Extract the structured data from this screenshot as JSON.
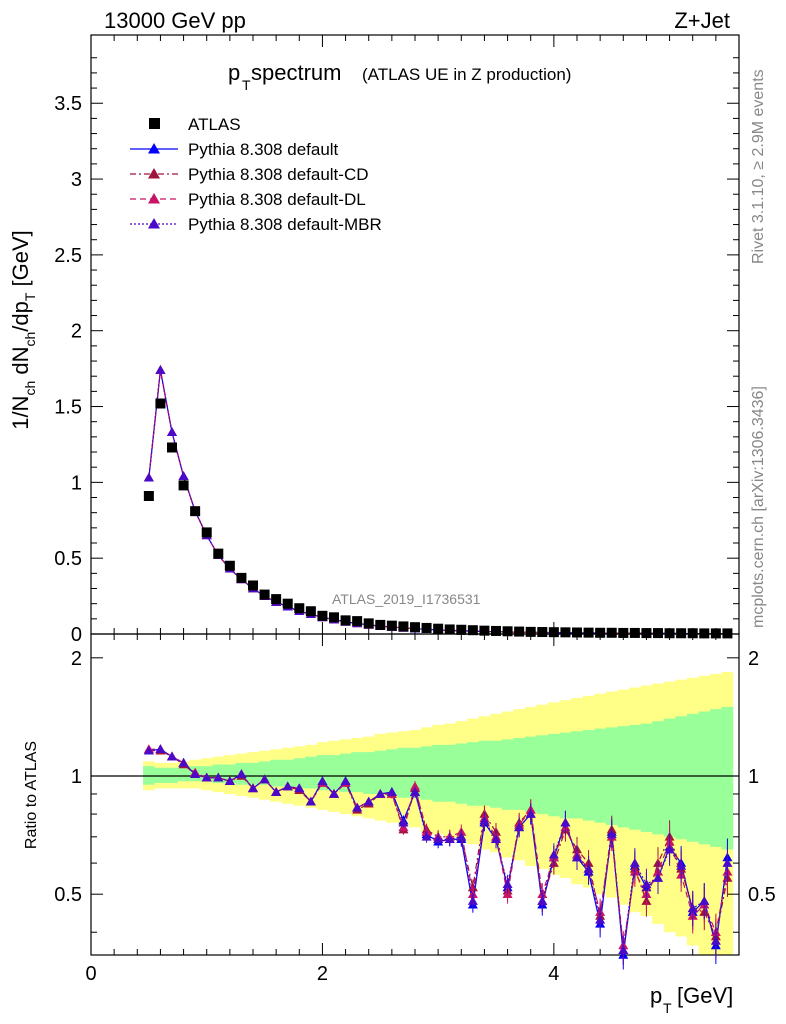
{
  "header": {
    "left": "13000 GeV pp",
    "right": "Z+Jet"
  },
  "title": {
    "main": "p",
    "main_sub": "T",
    "main_tail": " spectrum",
    "paren": "(ATLAS UE in Z production)"
  },
  "side_labels": {
    "rivet": "Rivet 3.1.10, ≥ 2.9M events",
    "mcplots": "mcplots.cern.ch [arXiv:1306.3436]"
  },
  "analysis_tag": "ATLAS_2019_I1736531",
  "axes": {
    "top_ylabel": "1/N_ch dN_ch/dp_T [GeV]",
    "bottom_ylabel": "Ratio to ATLAS",
    "xlabel": "p_T [GeV]",
    "x_ticks": [
      "0",
      "2",
      "4"
    ],
    "top_y_ticks": [
      "0",
      "0.5",
      "1",
      "1.5",
      "2",
      "2.5",
      "3",
      "3.5"
    ],
    "bottom_y_ticks": [
      "0.5",
      "1",
      "2"
    ]
  },
  "legend": [
    {
      "label": "ATLAS",
      "color": "#000000",
      "style": "square"
    },
    {
      "label": "Pythia 8.308 default",
      "color": "#0000ff",
      "style": "solid"
    },
    {
      "label": "Pythia 8.308 default-CD",
      "color": "#a0143c",
      "style": "dashdot"
    },
    {
      "label": "Pythia 8.308 default-DL",
      "color": "#c81464",
      "style": "dash"
    },
    {
      "label": "Pythia 8.308 default-MBR",
      "color": "#4b0ac8",
      "style": "dotted"
    }
  ],
  "chart_data": {
    "type": "scatter",
    "x": [
      0.5,
      0.6,
      0.7,
      0.8,
      0.9,
      1.0,
      1.1,
      1.2,
      1.3,
      1.4,
      1.5,
      1.6,
      1.7,
      1.8,
      1.9,
      2.0,
      2.1,
      2.2,
      2.3,
      2.4,
      2.5,
      2.6,
      2.7,
      2.8,
      2.9,
      3.0,
      3.1,
      3.2,
      3.3,
      3.4,
      3.5,
      3.6,
      3.7,
      3.8,
      3.9,
      4.0,
      4.1,
      4.2,
      4.3,
      4.4,
      4.5,
      4.6,
      4.7,
      4.8,
      4.9,
      5.0,
      5.1,
      5.2,
      5.3,
      5.4,
      5.5
    ],
    "xlim": [
      0,
      5.6
    ],
    "top": {
      "ylim": [
        0,
        3.95
      ],
      "series": [
        {
          "name": "ATLAS",
          "values": [
            0.91,
            1.52,
            1.23,
            0.98,
            0.81,
            0.67,
            0.53,
            0.45,
            0.37,
            0.32,
            0.26,
            0.23,
            0.2,
            0.17,
            0.15,
            0.12,
            0.11,
            0.09,
            0.085,
            0.07,
            0.06,
            0.055,
            0.05,
            0.045,
            0.04,
            0.035,
            0.03,
            0.028,
            0.025,
            0.022,
            0.02,
            0.018,
            0.016,
            0.014,
            0.013,
            0.012,
            0.011,
            0.01,
            0.009,
            0.008,
            0.008,
            0.007,
            0.007,
            0.006,
            0.006,
            0.005,
            0.005,
            0.005,
            0.004,
            0.004,
            0.004
          ]
        },
        {
          "name": "Pythia 8.308 default",
          "values": [
            1.03,
            1.74,
            1.33,
            1.04,
            0.81,
            0.65,
            0.52,
            0.43,
            0.36,
            0.3,
            0.25,
            0.21,
            0.18,
            0.15,
            0.13,
            0.11,
            0.095,
            0.08,
            0.07,
            0.06,
            0.052,
            0.046,
            0.04,
            0.035,
            0.031,
            0.027,
            0.024,
            0.021,
            0.019,
            0.017,
            0.015,
            0.013,
            0.012,
            0.011,
            0.01,
            0.009,
            0.008,
            0.007,
            0.007,
            0.006,
            0.006,
            0.005,
            0.005,
            0.004,
            0.004,
            0.004,
            0.003,
            0.003,
            0.003,
            0.003,
            0.002
          ]
        }
      ]
    },
    "ratio": {
      "ylim": [
        0.35,
        2.3
      ],
      "log": true,
      "reference": 1,
      "series": [
        {
          "name": "Pythia 8.308 default",
          "values": [
            1.16,
            1.17,
            1.12,
            1.08,
            1.01,
            0.99,
            0.99,
            0.97,
            1.01,
            0.93,
            0.98,
            0.91,
            0.94,
            0.93,
            0.86,
            0.97,
            0.9,
            0.97,
            0.83,
            0.86,
            0.9,
            0.91,
            0.77,
            0.91,
            0.71,
            0.68,
            0.69,
            0.69,
            0.47,
            0.76,
            0.69,
            0.52,
            0.74,
            0.8,
            0.47,
            0.62,
            0.76,
            0.62,
            0.57,
            0.42,
            0.72,
            0.35,
            0.59,
            0.52,
            0.55,
            0.66,
            0.6,
            0.45,
            0.48,
            0.37,
            0.62
          ]
        },
        {
          "name": "Pythia 8.308 default-CD",
          "values": [
            1.16,
            1.16,
            1.12,
            1.07,
            1.01,
            0.99,
            0.99,
            0.97,
            1.0,
            0.93,
            0.98,
            0.91,
            0.94,
            0.92,
            0.86,
            0.96,
            0.9,
            0.96,
            0.82,
            0.85,
            0.9,
            0.9,
            0.73,
            0.93,
            0.73,
            0.7,
            0.7,
            0.7,
            0.52,
            0.8,
            0.72,
            0.51,
            0.76,
            0.82,
            0.48,
            0.6,
            0.73,
            0.65,
            0.6,
            0.44,
            0.73,
            0.36,
            0.58,
            0.48,
            0.6,
            0.7,
            0.58,
            0.46,
            0.45,
            0.39,
            0.55
          ]
        },
        {
          "name": "Pythia 8.308 default-DL",
          "values": [
            1.17,
            1.17,
            1.12,
            1.08,
            1.02,
            0.99,
            0.99,
            0.97,
            1.01,
            0.93,
            0.98,
            0.91,
            0.94,
            0.93,
            0.86,
            0.96,
            0.9,
            0.96,
            0.83,
            0.86,
            0.9,
            0.9,
            0.74,
            0.94,
            0.72,
            0.7,
            0.7,
            0.72,
            0.5,
            0.78,
            0.7,
            0.5,
            0.75,
            0.82,
            0.5,
            0.62,
            0.74,
            0.63,
            0.58,
            0.45,
            0.7,
            0.37,
            0.57,
            0.5,
            0.57,
            0.68,
            0.56,
            0.44,
            0.47,
            0.4,
            0.57
          ]
        },
        {
          "name": "Pythia 8.308 default-MBR",
          "values": [
            1.16,
            1.17,
            1.12,
            1.08,
            1.01,
            0.99,
            0.99,
            0.97,
            1.01,
            0.93,
            0.98,
            0.91,
            0.94,
            0.93,
            0.86,
            0.97,
            0.9,
            0.97,
            0.83,
            0.86,
            0.9,
            0.91,
            0.76,
            0.91,
            0.7,
            0.69,
            0.69,
            0.7,
            0.48,
            0.77,
            0.69,
            0.53,
            0.74,
            0.8,
            0.48,
            0.63,
            0.76,
            0.62,
            0.58,
            0.43,
            0.71,
            0.36,
            0.6,
            0.53,
            0.55,
            0.65,
            0.59,
            0.46,
            0.48,
            0.38,
            0.6
          ]
        }
      ],
      "band_green": [
        [
          0.95,
          1.06
        ],
        [
          0.96,
          1.05
        ],
        [
          0.96,
          1.05
        ],
        [
          0.97,
          1.06
        ],
        [
          0.97,
          1.06
        ],
        [
          0.97,
          1.06
        ],
        [
          0.96,
          1.07
        ],
        [
          0.96,
          1.07
        ],
        [
          0.95,
          1.08
        ],
        [
          0.95,
          1.08
        ],
        [
          0.95,
          1.09
        ],
        [
          0.94,
          1.1
        ],
        [
          0.94,
          1.1
        ],
        [
          0.93,
          1.11
        ],
        [
          0.93,
          1.12
        ],
        [
          0.92,
          1.13
        ],
        [
          0.92,
          1.13
        ],
        [
          0.91,
          1.14
        ],
        [
          0.91,
          1.15
        ],
        [
          0.9,
          1.15
        ],
        [
          0.9,
          1.16
        ],
        [
          0.89,
          1.17
        ],
        [
          0.88,
          1.18
        ],
        [
          0.88,
          1.18
        ],
        [
          0.87,
          1.19
        ],
        [
          0.86,
          1.2
        ],
        [
          0.86,
          1.2
        ],
        [
          0.85,
          1.21
        ],
        [
          0.84,
          1.22
        ],
        [
          0.84,
          1.23
        ],
        [
          0.83,
          1.23
        ],
        [
          0.82,
          1.24
        ],
        [
          0.82,
          1.25
        ],
        [
          0.81,
          1.26
        ],
        [
          0.8,
          1.27
        ],
        [
          0.79,
          1.28
        ],
        [
          0.78,
          1.29
        ],
        [
          0.78,
          1.3
        ],
        [
          0.77,
          1.31
        ],
        [
          0.76,
          1.32
        ],
        [
          0.75,
          1.33
        ],
        [
          0.74,
          1.34
        ],
        [
          0.73,
          1.35
        ],
        [
          0.72,
          1.36
        ],
        [
          0.71,
          1.38
        ],
        [
          0.7,
          1.4
        ],
        [
          0.69,
          1.42
        ],
        [
          0.68,
          1.44
        ],
        [
          0.67,
          1.46
        ],
        [
          0.66,
          1.48
        ],
        [
          0.65,
          1.5
        ]
      ],
      "band_yellow": [
        [
          0.92,
          1.09
        ],
        [
          0.93,
          1.08
        ],
        [
          0.93,
          1.08
        ],
        [
          0.93,
          1.09
        ],
        [
          0.93,
          1.1
        ],
        [
          0.92,
          1.11
        ],
        [
          0.91,
          1.12
        ],
        [
          0.9,
          1.13
        ],
        [
          0.89,
          1.14
        ],
        [
          0.88,
          1.15
        ],
        [
          0.87,
          1.16
        ],
        [
          0.86,
          1.17
        ],
        [
          0.85,
          1.18
        ],
        [
          0.84,
          1.19
        ],
        [
          0.83,
          1.2
        ],
        [
          0.82,
          1.22
        ],
        [
          0.81,
          1.23
        ],
        [
          0.8,
          1.24
        ],
        [
          0.79,
          1.25
        ],
        [
          0.78,
          1.26
        ],
        [
          0.77,
          1.28
        ],
        [
          0.76,
          1.29
        ],
        [
          0.75,
          1.3
        ],
        [
          0.74,
          1.31
        ],
        [
          0.72,
          1.33
        ],
        [
          0.71,
          1.35
        ],
        [
          0.7,
          1.36
        ],
        [
          0.68,
          1.38
        ],
        [
          0.67,
          1.4
        ],
        [
          0.65,
          1.42
        ],
        [
          0.64,
          1.44
        ],
        [
          0.62,
          1.46
        ],
        [
          0.61,
          1.48
        ],
        [
          0.59,
          1.5
        ],
        [
          0.58,
          1.52
        ],
        [
          0.56,
          1.54
        ],
        [
          0.55,
          1.56
        ],
        [
          0.53,
          1.58
        ],
        [
          0.52,
          1.6
        ],
        [
          0.5,
          1.62
        ],
        [
          0.49,
          1.64
        ],
        [
          0.47,
          1.66
        ],
        [
          0.45,
          1.68
        ],
        [
          0.44,
          1.7
        ],
        [
          0.42,
          1.72
        ],
        [
          0.4,
          1.74
        ],
        [
          0.39,
          1.76
        ],
        [
          0.37,
          1.78
        ],
        [
          0.35,
          1.8
        ],
        [
          0.35,
          1.82
        ],
        [
          0.35,
          1.84
        ]
      ]
    }
  }
}
